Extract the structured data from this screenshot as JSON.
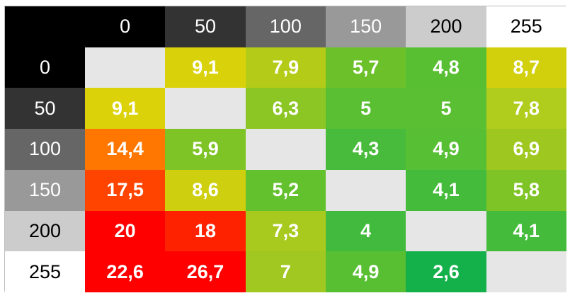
{
  "chart_data": {
    "type": "heatmap",
    "row_labels": [
      "0",
      "50",
      "100",
      "150",
      "200",
      "255"
    ],
    "col_labels": [
      "0",
      "50",
      "100",
      "150",
      "200",
      "255"
    ],
    "header_colors": [
      "#000000",
      "#333333",
      "#666666",
      "#999999",
      "#cccccc",
      "#ffffff"
    ],
    "header_text_colors": [
      "#ffffff",
      "#ffffff",
      "#ffffff",
      "#ffffff",
      "#000000",
      "#000000"
    ],
    "diagonal_color": "#e6e6e6",
    "values": [
      [
        null,
        "9,1",
        "7,9",
        "5,7",
        "4,8",
        "8,7"
      ],
      [
        "9,1",
        null,
        "6,3",
        "5",
        "5",
        "7,8"
      ],
      [
        "14,4",
        "5,9",
        null,
        "4,3",
        "4,9",
        "6,9"
      ],
      [
        "17,5",
        "8,6",
        "5,2",
        null,
        "4,1",
        "5,8"
      ],
      [
        "20",
        "18",
        "7,3",
        "4",
        null,
        "4,1"
      ],
      [
        "22,6",
        "26,7",
        "7",
        "4,9",
        "2,6",
        null
      ]
    ],
    "cell_colors": [
      [
        null,
        "#d9d20a",
        "#b4cc18",
        "#6cc12a",
        "#58bf32",
        "#d2cf0c"
      ],
      [
        "#dcd20a",
        null,
        "#8bc624",
        "#5abf32",
        "#5abf32",
        "#b0cc1c"
      ],
      [
        "#ff7700",
        "#7ec426",
        null,
        "#48bb3c",
        "#57bf34",
        "#9ec820"
      ],
      [
        "#ff4400",
        "#cecf0e",
        "#64c12e",
        null,
        "#45bb3c",
        "#7ec426"
      ],
      [
        "#ff0000",
        "#ff2200",
        "#a8ca1e",
        "#42ba3e",
        null,
        "#45bb3c"
      ],
      [
        "#ff0000",
        "#ff0000",
        "#a0c820",
        "#58bf32",
        "#14b14a",
        null
      ]
    ]
  }
}
